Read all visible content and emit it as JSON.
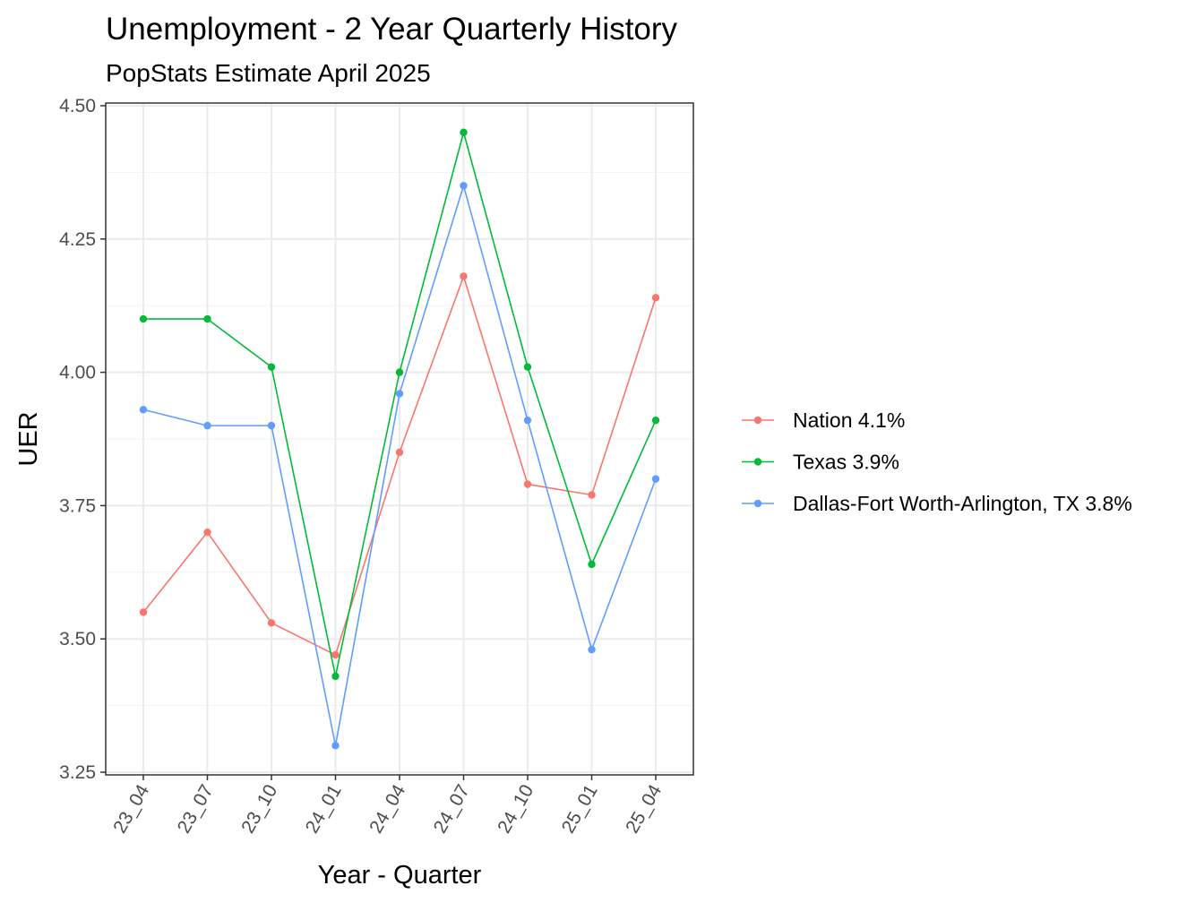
{
  "chart_data": {
    "type": "line",
    "title": "Unemployment - 2 Year Quarterly History",
    "subtitle": "PopStats Estimate April 2025",
    "xlabel": "Year - Quarter",
    "ylabel": "UER",
    "categories": [
      "23_04",
      "23_07",
      "23_10",
      "24_01",
      "24_04",
      "24_07",
      "24_10",
      "25_01",
      "25_04"
    ],
    "ylim": [
      3.25,
      4.5
    ],
    "yticks": [
      "3.25",
      "3.50",
      "3.75",
      "4.00",
      "4.25",
      "4.50"
    ],
    "grid": true,
    "legend_position": "right",
    "series": [
      {
        "name": "Nation 4.1%",
        "color": "#f8766d",
        "values": [
          3.55,
          3.7,
          3.53,
          3.47,
          3.85,
          4.18,
          3.79,
          3.77,
          4.14
        ]
      },
      {
        "name": "Texas 3.9%",
        "color": "#00ba38",
        "values": [
          4.1,
          4.1,
          4.01,
          3.43,
          4.0,
          4.45,
          4.01,
          3.64,
          3.91
        ]
      },
      {
        "name": "Dallas-Fort Worth-Arlington, TX 3.8%",
        "color": "#619cff",
        "values": [
          3.93,
          3.9,
          3.9,
          3.3,
          3.96,
          4.35,
          3.91,
          3.48,
          3.8
        ]
      }
    ]
  }
}
